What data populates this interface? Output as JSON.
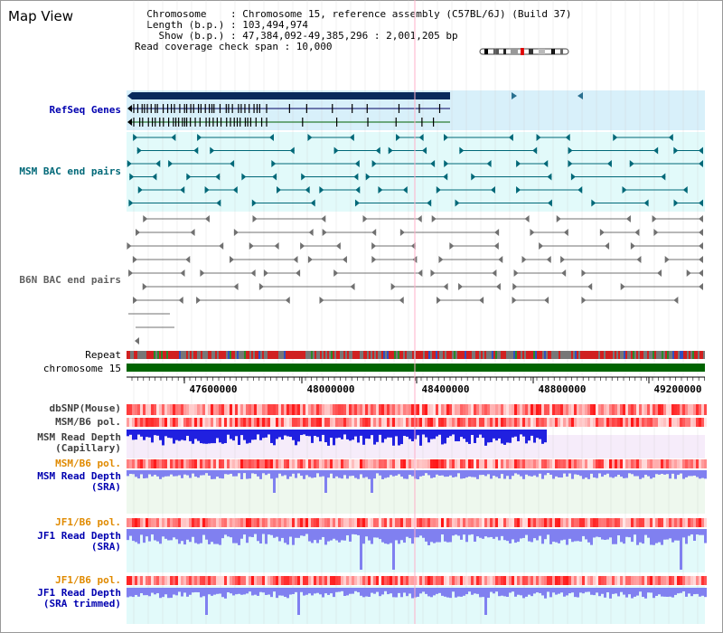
{
  "page": {
    "title": "Map View"
  },
  "header": {
    "lines": [
      "  Chromosome    : Chromosome 15, reference assembly (C57BL/6J) (Build 37)",
      "  Length (b.p.) : 103,494,974",
      "    Show (b.p.) : 47,384,092-49,385,296 : 2,001,205 bp",
      "Read coverage check span : 10,000"
    ]
  },
  "tracks": [
    {
      "id": "refseq",
      "label": "RefSeq Genes",
      "color": "#0000b0",
      "bold": true
    },
    {
      "id": "msm_bac",
      "label": "MSM BAC end pairs",
      "color": "#006878",
      "bold": true
    },
    {
      "id": "b6n_bac",
      "label": "B6N BAC end pairs",
      "color": "#606060",
      "bold": true
    },
    {
      "id": "repeat",
      "label": "Repeat",
      "color": "#000000",
      "bold": false
    },
    {
      "id": "chromosome",
      "label": "chromosome 15",
      "color": "#000000",
      "bold": false
    },
    {
      "id": "dbsnp",
      "label": "dbSNP(Mouse)",
      "color": "#404040",
      "bold": true
    },
    {
      "id": "msm_b6_pol",
      "label": "MSM/B6 pol.",
      "color": "#404040",
      "bold": true
    },
    {
      "id": "msm_depth_cap",
      "label": "MSM Read Depth\n(Capillary)",
      "color": "#404040",
      "bold": true
    },
    {
      "id": "msm_b6_pol2",
      "label": "MSM/B6 pol.",
      "color": "#e08a00",
      "bold": true
    },
    {
      "id": "msm_depth_sra",
      "label": "MSM Read Depth\n(SRA)",
      "color": "#0000b0",
      "bold": true
    },
    {
      "id": "jf1_b6_pol",
      "label": "JF1/B6 pol.",
      "color": "#e08a00",
      "bold": true
    },
    {
      "id": "jf1_depth_sra",
      "label": "JF1 Read Depth\n(SRA)",
      "color": "#0000b0",
      "bold": true
    },
    {
      "id": "jf1_b6_pol2",
      "label": "JF1/B6 pol.",
      "color": "#e08a00",
      "bold": true
    },
    {
      "id": "jf1_depth_trim",
      "label": "JF1 Read Depth\n(SRA trimmed)",
      "color": "#0000b0",
      "bold": true
    }
  ],
  "axis": {
    "ticks": [
      "47600000",
      "48000000",
      "48400000",
      "48800000",
      "49200000"
    ]
  },
  "colors": {
    "refseq_bg": "#d8f0fa",
    "refseq_gene": "#0a2a5c",
    "msm_bg": "#e2fafa",
    "msm_pair": "#006878",
    "b6n_pair": "#707070",
    "chromosome": "#006400",
    "snp_low": "#ffd8d8",
    "snp_high": "#e01010",
    "depth_capillary": "#2020e0",
    "depth_sra": "#8080f0",
    "msm_sra_bg": "#eef8ee",
    "jf1_bg": "#e2fafa",
    "grid": "#c8c8c8",
    "marker": "#ffb0c8"
  }
}
